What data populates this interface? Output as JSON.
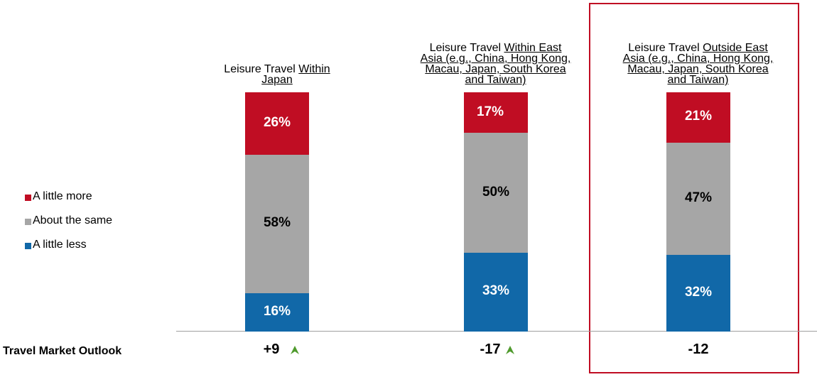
{
  "chart_data": {
    "type": "stacked_bar",
    "categories": [
      "Leisure Travel Within Japan",
      "Leisure Travel Within East Asia (e.g., China, Hong Kong, Macau, Japan, South Korea and Taiwan)",
      "Leisure Travel Outside East Asia (e.g., China, Hong Kong, Macau, Japan, South Korea and Taiwan)"
    ],
    "series": [
      {
        "name": "A little more",
        "color": "#c00d23",
        "values": [
          26,
          17,
          21
        ],
        "value_labels": [
          "26%",
          "17%",
          "21%"
        ],
        "label_color": "#ffffff"
      },
      {
        "name": "About the same",
        "color": "#a6a6a6",
        "values": [
          58,
          50,
          47
        ],
        "value_labels": [
          "58%",
          "50%",
          "47%"
        ],
        "label_color": "#000000"
      },
      {
        "name": "A little less",
        "color": "#1168a8",
        "values": [
          16,
          33,
          32
        ],
        "value_labels": [
          "16%",
          "33%",
          "32%"
        ],
        "label_color": "#ffffff"
      }
    ],
    "ylim": [
      0,
      100
    ],
    "outlook": {
      "label": "Travel Market Outlook",
      "values": [
        9,
        -17,
        -12
      ],
      "value_labels": [
        "+9",
        "-17",
        "-12"
      ]
    }
  }
}
